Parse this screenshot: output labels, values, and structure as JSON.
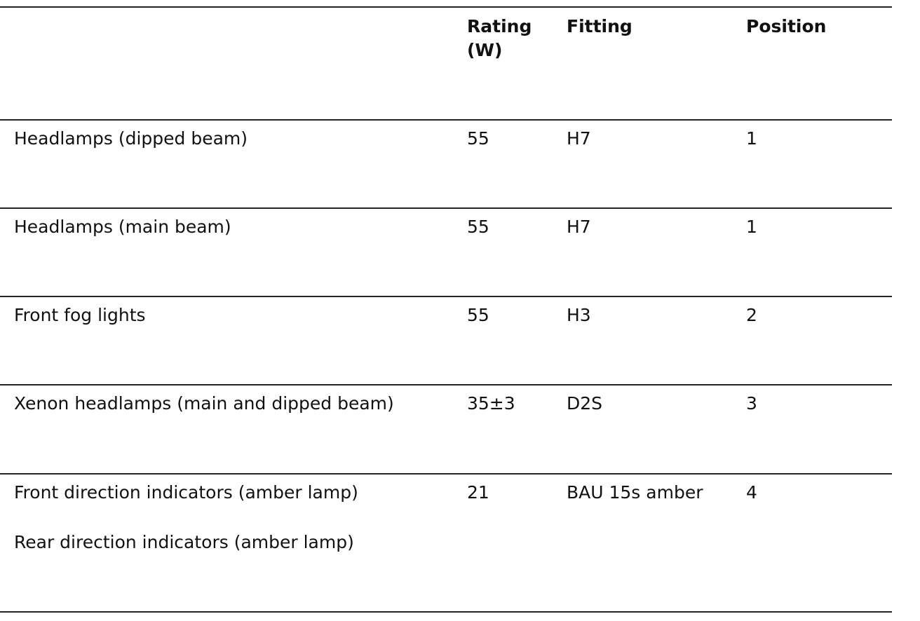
{
  "table": {
    "header": [
      "Rating (W)",
      "Fitting",
      "Position"
    ],
    "rows": [
      [
        "Headlamps (dipped beam)",
        "55",
        "H7",
        "1"
      ],
      [
        "Headlamps (main beam)",
        "55",
        "H7",
        "1"
      ],
      [
        "Front fog lights",
        "55",
        "H3",
        "2"
      ],
      [
        "Xenon headlamps (main and dipped beam)",
        "35±3",
        "D2S",
        "3"
      ],
      [
        [
          "Front direction indicators (amber lamp)",
          "Rear direction indicators (amber lamp)"
        ],
        "21",
        "BAU 15s amber",
        "4"
      ]
    ]
  }
}
